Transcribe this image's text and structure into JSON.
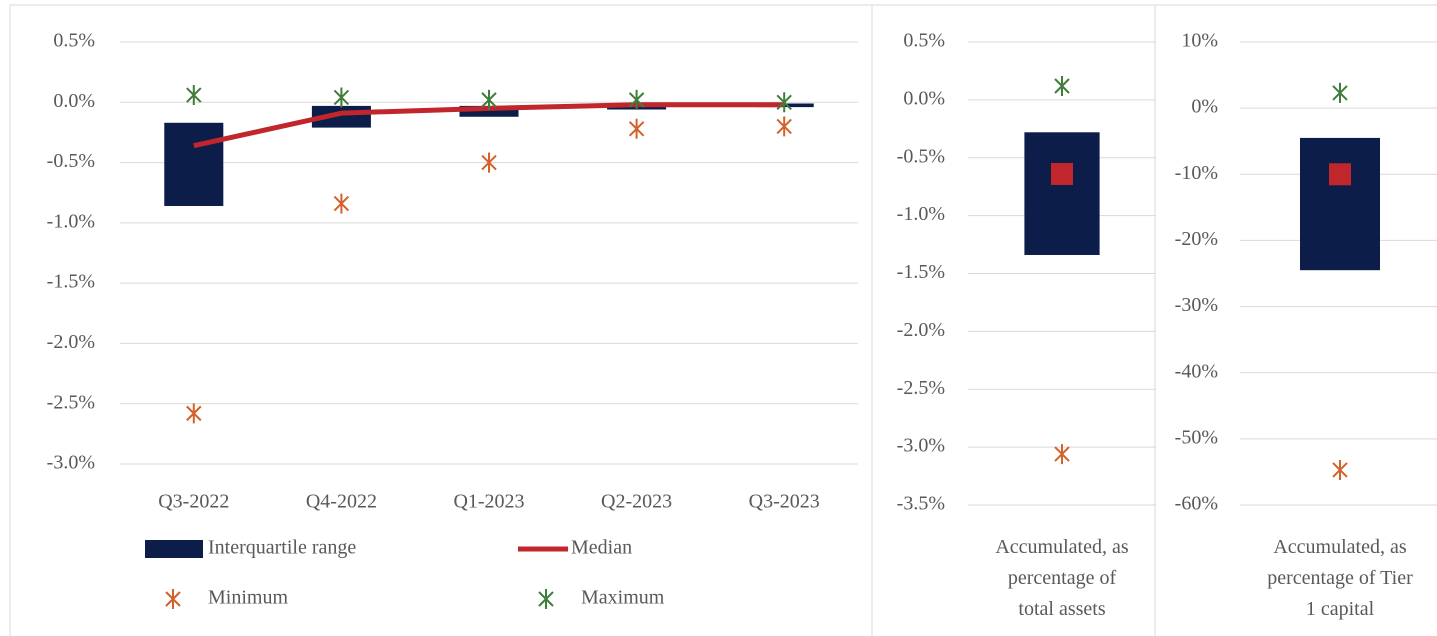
{
  "chart_data": [
    {
      "type": "box",
      "categories": [
        "Q3-2022",
        "Q4-2022",
        "Q1-2023",
        "Q2-2023",
        "Q3-2023"
      ],
      "ylim": [
        -3.0,
        0.5
      ],
      "yticks": [
        {
          "value": 0.5,
          "label": "0.5%"
        },
        {
          "value": 0.0,
          "label": "0.0%"
        },
        {
          "value": -0.5,
          "label": "-0.5%"
        },
        {
          "value": -1.0,
          "label": "-1.0%"
        },
        {
          "value": -1.5,
          "label": "-1.5%"
        },
        {
          "value": -2.0,
          "label": "-2.0%"
        },
        {
          "value": -2.5,
          "label": "-2.5%"
        },
        {
          "value": -3.0,
          "label": "-3.0%"
        }
      ],
      "grid": true,
      "legend": "bottom",
      "series": [
        {
          "name": "Interquartile range",
          "color": "#0b1d48",
          "marker": "range",
          "high": [
            -0.17,
            -0.03,
            -0.03,
            -0.02,
            -0.01
          ],
          "low": [
            -0.86,
            -0.21,
            -0.12,
            -0.06,
            -0.04
          ]
        },
        {
          "name": "Median",
          "color": "#c0262c",
          "marker": "line",
          "values": [
            -0.36,
            -0.09,
            -0.05,
            -0.02,
            -0.02
          ]
        },
        {
          "name": "Minimum",
          "color": "#d4602a",
          "marker": "asterisk",
          "values": [
            -2.58,
            -0.84,
            -0.5,
            -0.22,
            -0.2
          ]
        },
        {
          "name": "Maximum",
          "color": "#3f7d3a",
          "marker": "asterisk",
          "values": [
            0.06,
            0.04,
            0.02,
            0.02,
            0.0
          ]
        }
      ]
    },
    {
      "type": "box",
      "categories": [
        "Accumulated, as percentage of total assets"
      ],
      "ylim": [
        -3.5,
        0.5
      ],
      "yticks": [
        {
          "value": 0.5,
          "label": "0.5%"
        },
        {
          "value": 0.0,
          "label": "0.0%"
        },
        {
          "value": -0.5,
          "label": "-0.5%"
        },
        {
          "value": -1.0,
          "label": "-1.0%"
        },
        {
          "value": -1.5,
          "label": "-1.5%"
        },
        {
          "value": -2.0,
          "label": "-2.0%"
        },
        {
          "value": -2.5,
          "label": "-2.5%"
        },
        {
          "value": -3.0,
          "label": "-3.0%"
        },
        {
          "value": -3.5,
          "label": "-3.5%"
        }
      ],
      "grid": true,
      "series": [
        {
          "color": "#0b1d48",
          "marker": "range",
          "high": [
            -0.28
          ],
          "low": [
            -1.34
          ]
        },
        {
          "color": "#c0262c",
          "marker": "square",
          "values": [
            -0.64
          ]
        },
        {
          "color": "#d4602a",
          "marker": "asterisk",
          "values": [
            -3.06
          ]
        },
        {
          "color": "#3f7d3a",
          "marker": "asterisk",
          "values": [
            0.12
          ]
        }
      ]
    },
    {
      "type": "box",
      "categories": [
        "Accumulated, as percentage of Tier 1 capital"
      ],
      "ylim": [
        -60,
        10
      ],
      "yticks": [
        {
          "value": 10,
          "label": "10%"
        },
        {
          "value": 0,
          "label": "0%"
        },
        {
          "value": -10,
          "label": "-10%"
        },
        {
          "value": -20,
          "label": "-20%"
        },
        {
          "value": -30,
          "label": "-30%"
        },
        {
          "value": -40,
          "label": "-40%"
        },
        {
          "value": -50,
          "label": "-50%"
        },
        {
          "value": -60,
          "label": "-60%"
        }
      ],
      "grid": true,
      "series": [
        {
          "color": "#0b1d48",
          "marker": "range",
          "high": [
            -4.5
          ],
          "low": [
            -24.5
          ]
        },
        {
          "color": "#c0262c",
          "marker": "square",
          "values": [
            -10
          ]
        },
        {
          "color": "#d4602a",
          "marker": "asterisk",
          "values": [
            -54.7
          ]
        },
        {
          "color": "#3f7d3a",
          "marker": "asterisk",
          "values": [
            2.3
          ]
        }
      ]
    }
  ]
}
